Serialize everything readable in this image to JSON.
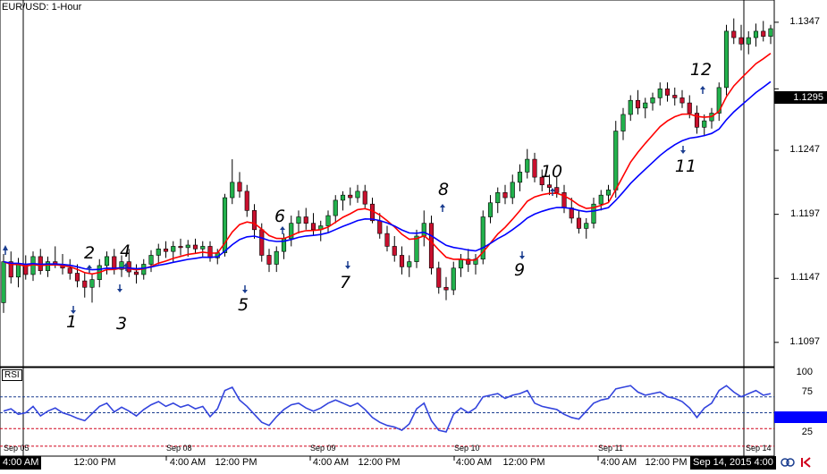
{
  "window": {
    "symbol_label": "EUR/USD: 1-Hour",
    "rsi_label": "RSI"
  },
  "price_badge": "1.1295",
  "y_axis": {
    "labels": [
      "1.1347",
      "1.1295",
      "1.1247",
      "1.1197",
      "1.1147",
      "1.1097"
    ],
    "values": [
      1.1347,
      1.1295,
      1.1247,
      1.1197,
      1.1147,
      1.1097
    ]
  },
  "rsi_axis": {
    "labels": [
      "100",
      "75",
      "25"
    ],
    "values": [
      100,
      75,
      25
    ],
    "levels": [
      70,
      50,
      30
    ]
  },
  "x_axis": {
    "date_labels": [
      "Sep 08",
      "Sep 09",
      "Sep 10",
      "Sep 11"
    ],
    "time_labels": [
      "12:00 PM",
      "4:00 AM",
      "12:00 PM",
      "4:00 AM",
      "12:00 PM",
      "4:00 AM",
      "12:00 PM",
      "4:00 AM",
      "12:00 PM"
    ],
    "left_date": "Sep 05",
    "left_time": "4:00 AM",
    "right_date": "Sep 14",
    "right_tooltip": "Sep 14, 2015 4:00"
  },
  "annotations": [
    "1",
    "2",
    "3",
    "4",
    "5",
    "6",
    "7",
    "8",
    "9",
    "10",
    "11",
    "12"
  ],
  "colors": {
    "bull": "#22b14c",
    "bear": "#c8102e",
    "fast_ma": "#ff0000",
    "slow_ma": "#0000ff",
    "rsi_line": "#3344dd",
    "arrow": "#1a3d8f"
  },
  "chart_data": {
    "type": "candlestick",
    "symbol": "EUR/USD",
    "timeframe": "1-Hour",
    "ylim": [
      1.1085,
      1.136
    ],
    "candles": [
      [
        1.1128,
        1.1166,
        1.112,
        1.116
      ],
      [
        1.116,
        1.1168,
        1.1143,
        1.1148
      ],
      [
        1.1148,
        1.1163,
        1.114,
        1.1158
      ],
      [
        1.1158,
        1.1165,
        1.1146,
        1.115
      ],
      [
        1.115,
        1.1168,
        1.1145,
        1.1164
      ],
      [
        1.1164,
        1.117,
        1.115,
        1.1153
      ],
      [
        1.1153,
        1.1164,
        1.1148,
        1.116
      ],
      [
        1.116,
        1.1172,
        1.1155,
        1.1158
      ],
      [
        1.1158,
        1.1166,
        1.115,
        1.1155
      ],
      [
        1.1155,
        1.1162,
        1.1146,
        1.1151
      ],
      [
        1.1151,
        1.1158,
        1.114,
        1.1145
      ],
      [
        1.1145,
        1.1152,
        1.1132,
        1.114
      ],
      [
        1.114,
        1.115,
        1.1128,
        1.1146
      ],
      [
        1.1146,
        1.1162,
        1.114,
        1.1157
      ],
      [
        1.1157,
        1.1168,
        1.115,
        1.1164
      ],
      [
        1.1164,
        1.117,
        1.115,
        1.1154
      ],
      [
        1.1154,
        1.1165,
        1.1148,
        1.116
      ],
      [
        1.116,
        1.117,
        1.1148,
        1.1152
      ],
      [
        1.1152,
        1.1158,
        1.1143,
        1.115
      ],
      [
        1.115,
        1.1162,
        1.1146,
        1.1158
      ],
      [
        1.1158,
        1.1169,
        1.1152,
        1.1165
      ],
      [
        1.1165,
        1.1174,
        1.1158,
        1.117
      ],
      [
        1.117,
        1.1176,
        1.1163,
        1.1168
      ],
      [
        1.1168,
        1.1176,
        1.116,
        1.1172
      ],
      [
        1.1172,
        1.1178,
        1.1165,
        1.1171
      ],
      [
        1.1171,
        1.1177,
        1.1164,
        1.1173
      ],
      [
        1.1173,
        1.1178,
        1.1166,
        1.117
      ],
      [
        1.117,
        1.1176,
        1.1164,
        1.1172
      ],
      [
        1.1172,
        1.1176,
        1.116,
        1.1163
      ],
      [
        1.1163,
        1.117,
        1.1158,
        1.1167
      ],
      [
        1.1167,
        1.1213,
        1.1164,
        1.121
      ],
      [
        1.121,
        1.124,
        1.1205,
        1.1222
      ],
      [
        1.1222,
        1.123,
        1.121,
        1.1215
      ],
      [
        1.1215,
        1.122,
        1.1195,
        1.12
      ],
      [
        1.12,
        1.1205,
        1.1178,
        1.1185
      ],
      [
        1.1185,
        1.119,
        1.116,
        1.1165
      ],
      [
        1.1165,
        1.117,
        1.1152,
        1.1158
      ],
      [
        1.1158,
        1.1172,
        1.1152,
        1.1168
      ],
      [
        1.1168,
        1.1182,
        1.1162,
        1.1178
      ],
      [
        1.1178,
        1.1196,
        1.1172,
        1.119
      ],
      [
        1.119,
        1.12,
        1.1182,
        1.1195
      ],
      [
        1.1195,
        1.1202,
        1.1185,
        1.119
      ],
      [
        1.119,
        1.1198,
        1.118,
        1.1185
      ],
      [
        1.1185,
        1.1192,
        1.1176,
        1.1188
      ],
      [
        1.1188,
        1.12,
        1.1183,
        1.1196
      ],
      [
        1.1196,
        1.1212,
        1.119,
        1.1208
      ],
      [
        1.1208,
        1.1215,
        1.12,
        1.1212
      ],
      [
        1.1212,
        1.1218,
        1.1204,
        1.121
      ],
      [
        1.121,
        1.122,
        1.1206,
        1.1215
      ],
      [
        1.1215,
        1.122,
        1.1202,
        1.1205
      ],
      [
        1.1205,
        1.121,
        1.119,
        1.1192
      ],
      [
        1.1192,
        1.1198,
        1.1178,
        1.1182
      ],
      [
        1.1182,
        1.1188,
        1.1168,
        1.1172
      ],
      [
        1.1172,
        1.118,
        1.116,
        1.1165
      ],
      [
        1.1165,
        1.1172,
        1.115,
        1.1156
      ],
      [
        1.1156,
        1.1165,
        1.1148,
        1.116
      ],
      [
        1.116,
        1.1185,
        1.1155,
        1.118
      ],
      [
        1.118,
        1.12,
        1.1172,
        1.119
      ],
      [
        1.119,
        1.1196,
        1.115,
        1.1155
      ],
      [
        1.1155,
        1.116,
        1.1135,
        1.114
      ],
      [
        1.114,
        1.1148,
        1.113,
        1.1138
      ],
      [
        1.1138,
        1.116,
        1.1134,
        1.1155
      ],
      [
        1.1155,
        1.1166,
        1.1148,
        1.1162
      ],
      [
        1.1162,
        1.117,
        1.1152,
        1.1158
      ],
      [
        1.1158,
        1.1166,
        1.115,
        1.1162
      ],
      [
        1.1162,
        1.12,
        1.1158,
        1.1195
      ],
      [
        1.1195,
        1.1212,
        1.119,
        1.1206
      ],
      [
        1.1206,
        1.1218,
        1.1198,
        1.1214
      ],
      [
        1.1214,
        1.122,
        1.1205,
        1.121
      ],
      [
        1.121,
        1.1228,
        1.1205,
        1.1222
      ],
      [
        1.1222,
        1.1236,
        1.1215,
        1.123
      ],
      [
        1.123,
        1.1248,
        1.1225,
        1.124
      ],
      [
        1.124,
        1.1245,
        1.1222,
        1.1226
      ],
      [
        1.1226,
        1.1232,
        1.1215,
        1.122
      ],
      [
        1.122,
        1.1228,
        1.1212,
        1.1218
      ],
      [
        1.1218,
        1.1226,
        1.121,
        1.1214
      ],
      [
        1.1214,
        1.122,
        1.1198,
        1.1202
      ],
      [
        1.1202,
        1.121,
        1.119,
        1.1194
      ],
      [
        1.1194,
        1.12,
        1.1182,
        1.1186
      ],
      [
        1.1186,
        1.1194,
        1.1178,
        1.119
      ],
      [
        1.119,
        1.121,
        1.1186,
        1.1205
      ],
      [
        1.1205,
        1.1216,
        1.12,
        1.1212
      ],
      [
        1.1212,
        1.122,
        1.1206,
        1.1216
      ],
      [
        1.1216,
        1.127,
        1.121,
        1.1262
      ],
      [
        1.1262,
        1.128,
        1.1255,
        1.1275
      ],
      [
        1.1275,
        1.129,
        1.127,
        1.1286
      ],
      [
        1.1286,
        1.1294,
        1.1275,
        1.128
      ],
      [
        1.128,
        1.1288,
        1.1272,
        1.1284
      ],
      [
        1.1284,
        1.1292,
        1.1278,
        1.1288
      ],
      [
        1.1288,
        1.13,
        1.1282,
        1.1295
      ],
      [
        1.1295,
        1.13,
        1.1285,
        1.129
      ],
      [
        1.129,
        1.1296,
        1.1282,
        1.1288
      ],
      [
        1.1288,
        1.1294,
        1.128,
        1.1284
      ],
      [
        1.1284,
        1.129,
        1.1272,
        1.1276
      ],
      [
        1.1276,
        1.1282,
        1.126,
        1.1265
      ],
      [
        1.1265,
        1.1275,
        1.1258,
        1.127
      ],
      [
        1.127,
        1.128,
        1.1264,
        1.1276
      ],
      [
        1.1276,
        1.13,
        1.127,
        1.1296
      ],
      [
        1.1296,
        1.1345,
        1.129,
        1.134
      ],
      [
        1.134,
        1.135,
        1.133,
        1.1335
      ],
      [
        1.1335,
        1.1345,
        1.1325,
        1.133
      ],
      [
        1.133,
        1.134,
        1.1322,
        1.1335
      ],
      [
        1.1335,
        1.1346,
        1.1328,
        1.134
      ],
      [
        1.134,
        1.1348,
        1.1332,
        1.1336
      ],
      [
        1.1336,
        1.1345,
        1.133,
        1.1342
      ]
    ],
    "rsi": [
      52,
      55,
      48,
      50,
      58,
      46,
      52,
      56,
      50,
      47,
      43,
      40,
      49,
      58,
      62,
      51,
      57,
      52,
      46,
      54,
      60,
      64,
      58,
      62,
      57,
      60,
      55,
      58,
      45,
      55,
      78,
      82,
      66,
      58,
      48,
      38,
      34,
      45,
      54,
      60,
      62,
      56,
      52,
      56,
      62,
      66,
      62,
      58,
      62,
      54,
      44,
      38,
      34,
      32,
      28,
      36,
      55,
      62,
      40,
      28,
      26,
      48,
      56,
      50,
      56,
      70,
      72,
      74,
      68,
      72,
      74,
      78,
      62,
      58,
      56,
      54,
      48,
      44,
      42,
      52,
      62,
      66,
      68,
      80,
      82,
      84,
      76,
      72,
      74,
      76,
      70,
      68,
      64,
      56,
      44,
      56,
      62,
      78,
      84,
      76,
      70,
      74,
      78,
      72,
      74
    ],
    "fast_ma_period": 10,
    "slow_ma_period": 20
  }
}
